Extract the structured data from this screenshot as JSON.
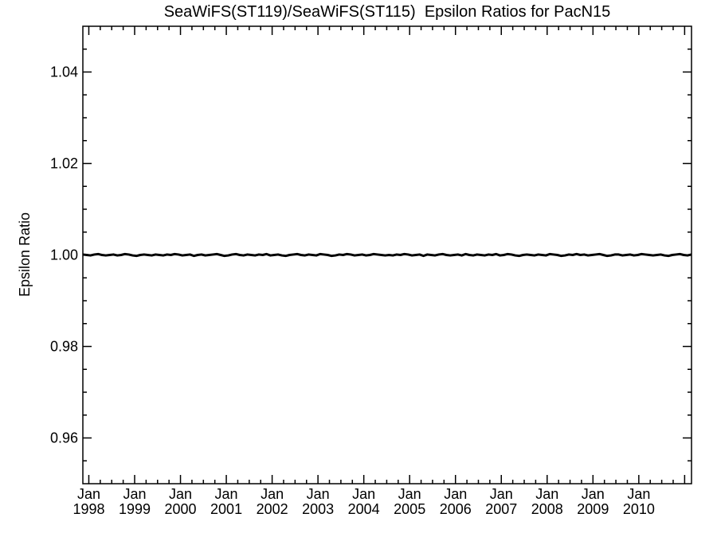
{
  "chart_data": {
    "type": "line",
    "title": "SeaWiFS(ST119)/SeaWiFS(ST115)  Epsilon Ratios for PacN15",
    "xlabel": "",
    "ylabel": "Epsilon Ratio",
    "xlim": [
      1997.87,
      2011.15
    ],
    "ylim": [
      0.95,
      1.05
    ],
    "grid": false,
    "legend": "none",
    "frame_color": "#000000",
    "line_color": "#000000",
    "line_width": 3,
    "x_major_ticks": [
      1998,
      1999,
      2000,
      2001,
      2002,
      2003,
      2004,
      2005,
      2006,
      2007,
      2008,
      2009,
      2010,
      2011
    ],
    "x_minor_step": 0.25,
    "x_tick_labels": [
      {
        "x": 1998,
        "month": "Jan",
        "year": "1998"
      },
      {
        "x": 1999,
        "month": "Jan",
        "year": "1999"
      },
      {
        "x": 2000,
        "month": "Jan",
        "year": "2000"
      },
      {
        "x": 2001,
        "month": "Jan",
        "year": "2001"
      },
      {
        "x": 2002,
        "month": "Jan",
        "year": "2002"
      },
      {
        "x": 2003,
        "month": "Jan",
        "year": "2003"
      },
      {
        "x": 2004,
        "month": "Jan",
        "year": "2004"
      },
      {
        "x": 2005,
        "month": "Jan",
        "year": "2005"
      },
      {
        "x": 2006,
        "month": "Jan",
        "year": "2006"
      },
      {
        "x": 2007,
        "month": "Jan",
        "year": "2007"
      },
      {
        "x": 2008,
        "month": "Jan",
        "year": "2008"
      },
      {
        "x": 2009,
        "month": "Jan",
        "year": "2009"
      },
      {
        "x": 2010,
        "month": "Jan",
        "year": "2010"
      }
    ],
    "y_major_ticks": [
      0.96,
      0.98,
      1.0,
      1.02,
      1.04
    ],
    "y_tick_labels": [
      "0.96",
      "0.98",
      "1.00",
      "1.02",
      "1.04"
    ],
    "y_minor_step": 0.005,
    "series": [
      {
        "name": "epsilon_ratio",
        "x_start": 1997.87,
        "x_step": 0.0835,
        "values": [
          1.0001,
          1.0,
          0.9999,
          1.0001,
          1.0002,
          1.0,
          0.9999,
          1.0,
          1.0001,
          0.9999,
          1.0,
          1.0002,
          1.0001,
          0.9999,
          0.9998,
          1.0,
          1.0001,
          1.0,
          0.9999,
          1.0001,
          1.0,
          0.9999,
          1.0001,
          1.0,
          1.0002,
          1.0001,
          0.9999,
          1.0,
          1.0001,
          0.9998,
          1.0,
          1.0001,
          0.9999,
          1.0,
          1.0001,
          1.0002,
          1.0,
          0.9998,
          0.9999,
          1.0001,
          1.0002,
          1.0,
          0.9999,
          1.0001,
          1.0,
          0.9999,
          1.0001,
          1.0,
          1.0002,
          0.9999,
          1.0,
          1.0001,
          0.9999,
          0.9998,
          1.0,
          1.0001,
          1.0002,
          1.0,
          0.9999,
          1.0001,
          1.0,
          0.9999,
          1.0002,
          1.0001,
          1.0,
          0.9998,
          0.9999,
          1.0001,
          1.0,
          1.0002,
          1.0001,
          0.9999,
          1.0,
          1.0001,
          0.9999,
          1.0,
          1.0002,
          1.0001,
          1.0,
          0.9999,
          1.0,
          0.9999,
          1.0001,
          1.0,
          1.0002,
          1.0001,
          0.9999,
          1.0,
          1.0001,
          0.9998,
          1.0001,
          1.0,
          0.9999,
          1.0001,
          1.0002,
          1.0,
          0.9999,
          1.0,
          1.0001,
          0.9999,
          1.0002,
          1.0,
          0.9999,
          1.0001,
          1.0,
          0.9999,
          1.0001,
          1.0,
          1.0002,
          0.9999,
          1.0,
          1.0002,
          1.0001,
          0.9999,
          0.9998,
          1.0,
          1.0001,
          1.0,
          0.9999,
          1.0001,
          1.0,
          0.9999,
          1.0002,
          1.0001,
          1.0,
          0.9998,
          0.9999,
          1.0001,
          1.0,
          1.0002,
          1.0,
          1.0001,
          0.9999,
          1.0,
          1.0001,
          1.0002,
          1.0,
          0.9998,
          0.9999,
          1.0001,
          1.0001,
          0.9999,
          1.0,
          1.0001,
          0.9999,
          1.0,
          1.0002,
          1.0001,
          1.0,
          0.9999,
          1.0,
          1.0001,
          0.9999,
          0.9998,
          1.0,
          1.0001,
          1.0002,
          1.0,
          0.9999,
          1.0001
        ]
      }
    ]
  }
}
